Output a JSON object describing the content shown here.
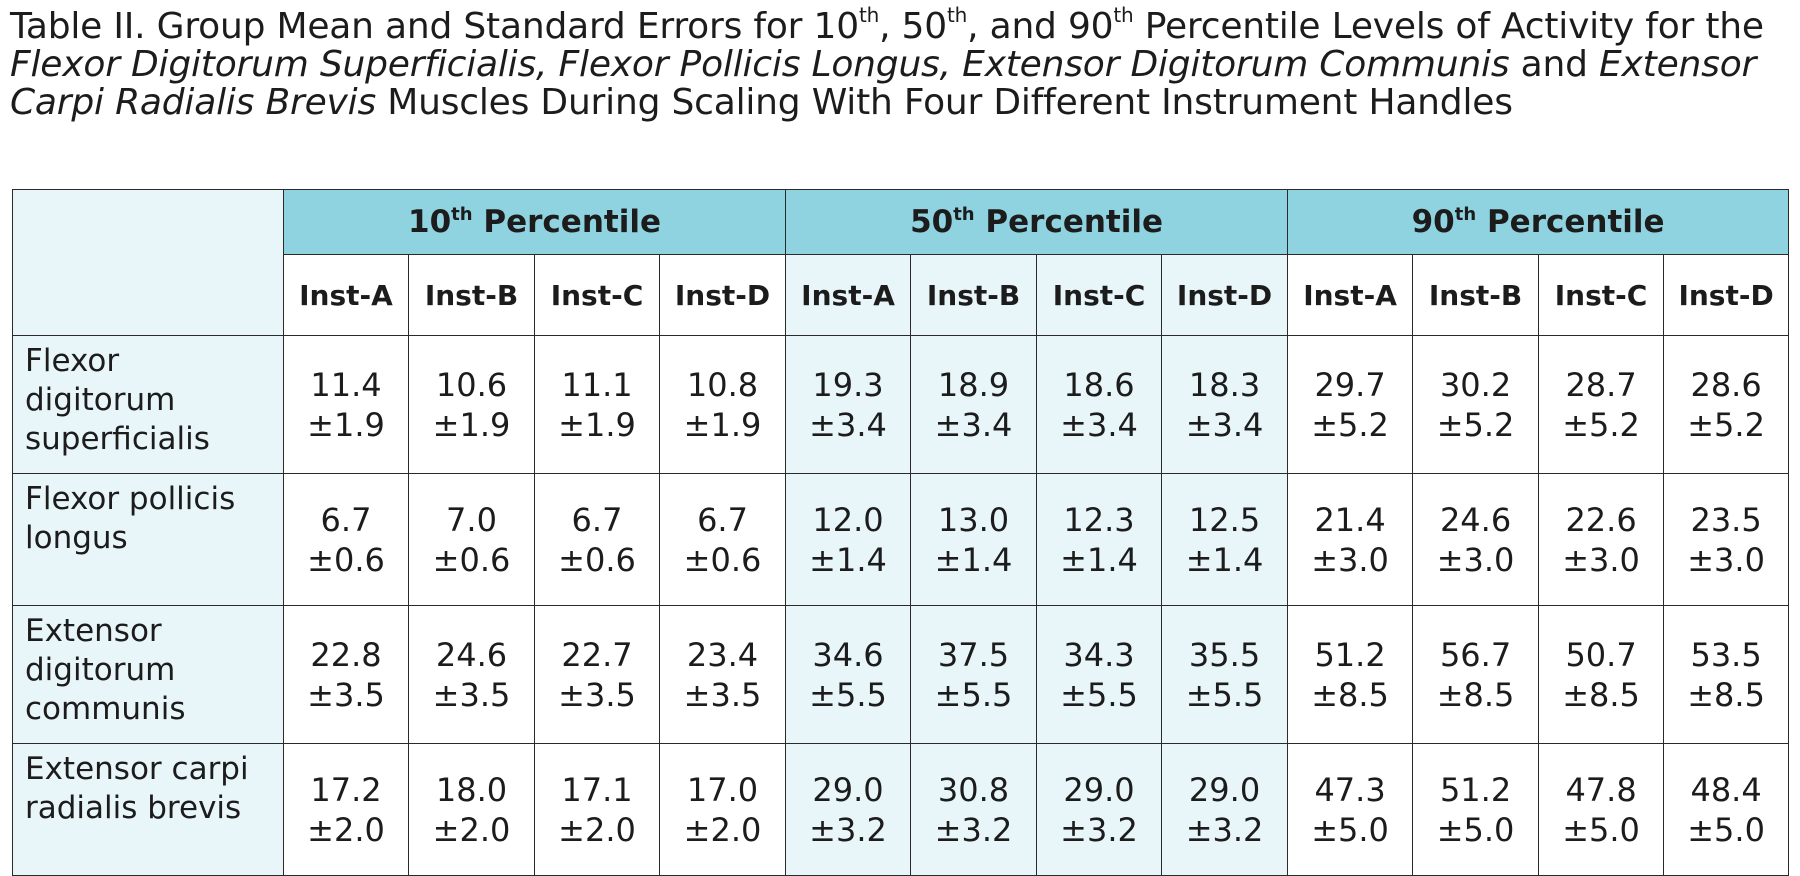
{
  "caption": {
    "prefix": "Table II. Group Mean and Standard Errors for 10",
    "sup1": "th",
    "mid1": ", 50",
    "sup2": "th",
    "mid2": ", and 90",
    "sup3": "th",
    "mid3": " Percentile Levels of Activity for the ",
    "italic1": "Flexor Digitorum Superficialis, Flexor Pollicis Longus, Extensor Digitorum Communis",
    "mid4": " and ",
    "italic2": "Extensor Carpi Radialis Brevis",
    "suffix": " Muscles During Scaling With Four Different Instrument Handles"
  },
  "table": {
    "groups": [
      {
        "num": "10",
        "sup": "th",
        "label": " Percentile"
      },
      {
        "num": "50",
        "sup": "th",
        "label": " Percentile"
      },
      {
        "num": "90",
        "sup": "th",
        "label": " Percentile"
      }
    ],
    "instruments": [
      "Inst-A",
      "Inst-B",
      "Inst-C",
      "Inst-D"
    ],
    "rows": [
      {
        "label": "Flexor digitorum superficialis",
        "cells": [
          [
            "11.4",
            "±1.9"
          ],
          [
            "10.6",
            "±1.9"
          ],
          [
            "11.1",
            "±1.9"
          ],
          [
            "10.8",
            "±1.9"
          ],
          [
            "19.3",
            "±3.4"
          ],
          [
            "18.9",
            "±3.4"
          ],
          [
            "18.6",
            "±3.4"
          ],
          [
            "18.3",
            "±3.4"
          ],
          [
            "29.7",
            "±5.2"
          ],
          [
            "30.2",
            "±5.2"
          ],
          [
            "28.7",
            "±5.2"
          ],
          [
            "28.6",
            "±5.2"
          ]
        ]
      },
      {
        "label": "Flexor pollicis longus",
        "cells": [
          [
            "6.7",
            "±0.6"
          ],
          [
            "7.0",
            "±0.6"
          ],
          [
            "6.7",
            "±0.6"
          ],
          [
            "6.7",
            "±0.6"
          ],
          [
            "12.0",
            "±1.4"
          ],
          [
            "13.0",
            "±1.4"
          ],
          [
            "12.3",
            "±1.4"
          ],
          [
            "12.5",
            "±1.4"
          ],
          [
            "21.4",
            "±3.0"
          ],
          [
            "24.6",
            "±3.0"
          ],
          [
            "22.6",
            "±3.0"
          ],
          [
            "23.5",
            "±3.0"
          ]
        ]
      },
      {
        "label": "Extensor digitorum communis",
        "cells": [
          [
            "22.8",
            "±3.5"
          ],
          [
            "24.6",
            "±3.5"
          ],
          [
            "22.7",
            "±3.5"
          ],
          [
            "23.4",
            "±3.5"
          ],
          [
            "34.6",
            "±5.5"
          ],
          [
            "37.5",
            "±5.5"
          ],
          [
            "34.3",
            "±5.5"
          ],
          [
            "35.5",
            "±5.5"
          ],
          [
            "51.2",
            "±8.5"
          ],
          [
            "56.7",
            "±8.5"
          ],
          [
            "50.7",
            "±8.5"
          ],
          [
            "53.5",
            "±8.5"
          ]
        ]
      },
      {
        "label": "Extensor carpi radialis brevis",
        "cells": [
          [
            "17.2",
            "±2.0"
          ],
          [
            "18.0",
            "±2.0"
          ],
          [
            "17.1",
            "±2.0"
          ],
          [
            "17.0",
            "±2.0"
          ],
          [
            "29.0",
            "±3.2"
          ],
          [
            "30.8",
            "±3.2"
          ],
          [
            "29.0",
            "±3.2"
          ],
          [
            "29.0",
            "±3.2"
          ],
          [
            "47.3",
            "±5.0"
          ],
          [
            "51.2",
            "±5.0"
          ],
          [
            "47.8",
            "±5.0"
          ],
          [
            "48.4",
            "±5.0"
          ]
        ]
      }
    ]
  }
}
